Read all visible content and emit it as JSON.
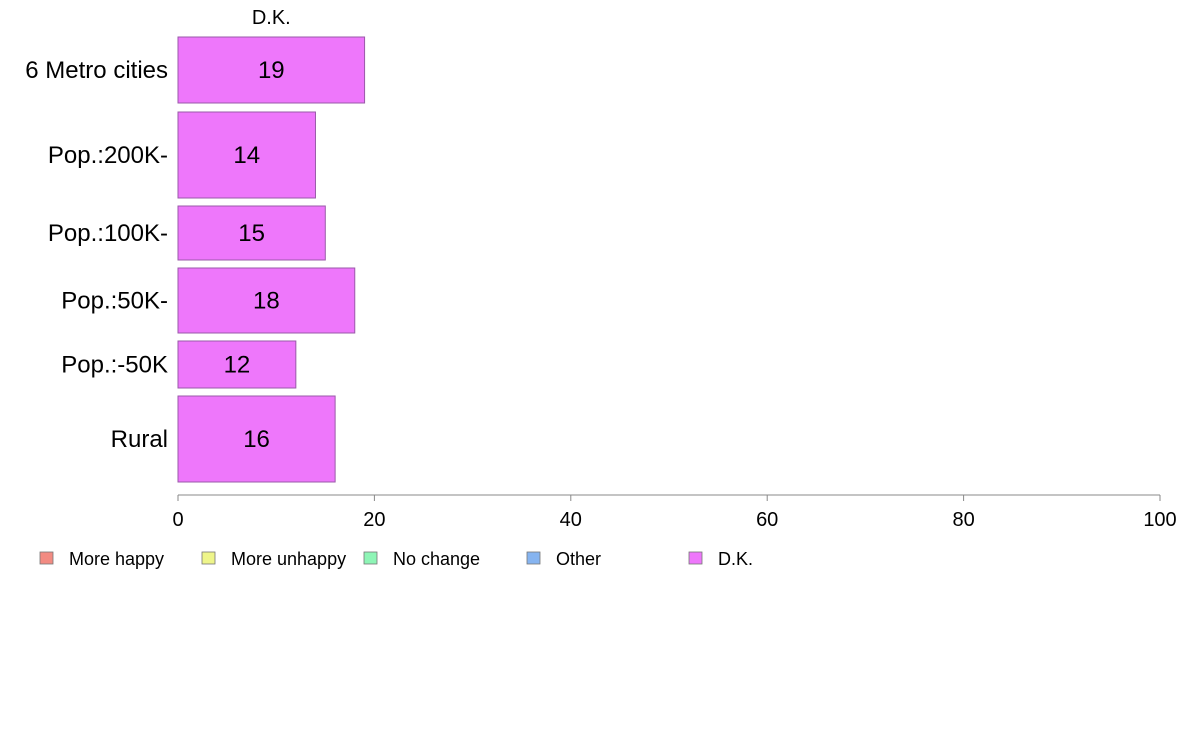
{
  "colors": {
    "more_happy": "#f28b82",
    "more_unhappy": "#eef58a",
    "no_change": "#8ef5b6",
    "other": "#86b4f0",
    "dk": "#ee77fb",
    "bar_stroke": "#9a5aa8",
    "axis": "#888888"
  },
  "chart_data": {
    "type": "bar",
    "orientation": "horizontal",
    "column_title": "D.K.",
    "categories": [
      "6 Metro cities",
      "Pop.:200K-",
      "Pop.:100K-",
      "Pop.:50K-",
      "Pop.:-50K",
      "Rural"
    ],
    "series": [
      {
        "name": "D.K.",
        "values": [
          19,
          14,
          15,
          18,
          12,
          16
        ]
      }
    ],
    "xlim": [
      0,
      100
    ],
    "x_ticks": [
      0,
      20,
      40,
      60,
      80,
      100
    ],
    "grid": false,
    "legend_position": "bottom",
    "legend": [
      {
        "label": "More happy",
        "color_key": "more_happy"
      },
      {
        "label": "More unhappy",
        "color_key": "more_unhappy"
      },
      {
        "label": "No change",
        "color_key": "no_change"
      },
      {
        "label": "Other",
        "color_key": "other"
      },
      {
        "label": "D.K.",
        "color_key": "dk"
      }
    ]
  }
}
